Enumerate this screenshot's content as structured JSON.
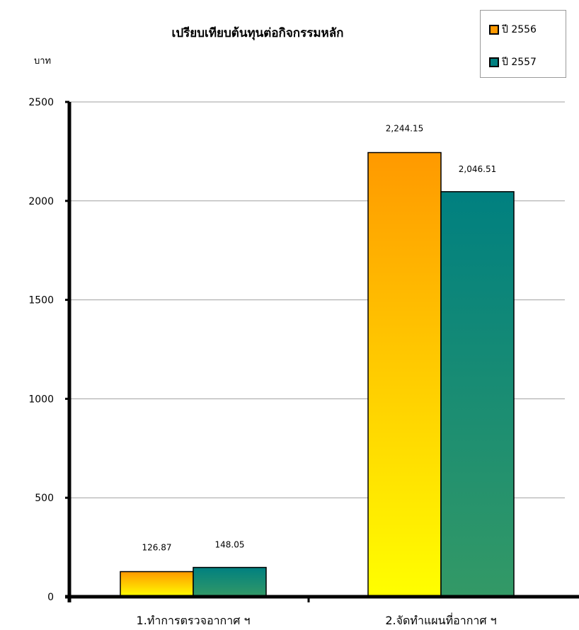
{
  "chart_data": {
    "type": "bar",
    "title": "เปรียบเทียบต้นทุนต่อกิจกรรมหลัก",
    "ylabel": "บาท",
    "xlabel": "",
    "categories": [
      "1.ทำการตรวจอากาศ ฯ",
      "2.จัดทำแผนที่อากาศ ฯ"
    ],
    "series": [
      {
        "name": "ปี 2556",
        "values": [
          126.87,
          2244.15
        ],
        "labels": [
          "126.87",
          "2,244.15"
        ],
        "color_top": "#ff9900",
        "color_bottom": "#ffff00"
      },
      {
        "name": "ปี 2557",
        "values": [
          148.05,
          2046.51
        ],
        "labels": [
          "148.05",
          "2,046.51"
        ],
        "color_top": "#008080",
        "color_bottom": "#339966"
      }
    ],
    "yticks": [
      "0",
      "500",
      "1000",
      "1500",
      "2000",
      "2500"
    ],
    "ylim": [
      0,
      2500
    ],
    "grid": true,
    "legend_position": "top-right"
  }
}
